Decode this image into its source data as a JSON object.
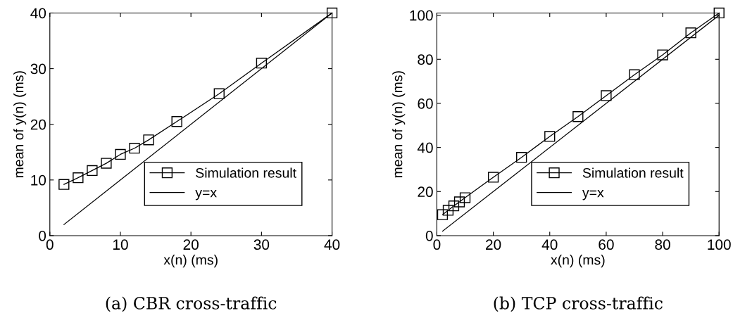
{
  "chart_data": [
    {
      "type": "line",
      "title": "(a) CBR cross-traffic",
      "xlabel": "x(n) (ms)",
      "ylabel": "mean of y(n) (ms)",
      "xlim": [
        0,
        40
      ],
      "ylim": [
        0,
        40
      ],
      "xticks": [
        0,
        10,
        20,
        30,
        40
      ],
      "yticks": [
        0,
        10,
        20,
        30,
        40
      ],
      "grid": false,
      "legend": "bottom right",
      "line_style": "solid",
      "series": [
        {
          "name": "Simulation result",
          "color": "#000000",
          "marker": "square",
          "x": [
            2,
            4,
            6,
            8,
            10,
            12,
            14,
            18,
            24,
            30,
            40
          ],
          "values": [
            9.2,
            10.4,
            11.7,
            13,
            14.6,
            15.7,
            17.2,
            20.5,
            25.5,
            31,
            40
          ]
        },
        {
          "name": "y=x",
          "color": "#000000",
          "marker": "none",
          "x": [
            2,
            40
          ],
          "values": [
            2,
            40
          ]
        }
      ]
    },
    {
      "type": "line",
      "title": "(b) TCP cross-traffic",
      "xlabel": "x(n) (ms)",
      "ylabel": "mean of y(n) (ms)",
      "xlim": [
        0,
        100
      ],
      "ylim": [
        0,
        101
      ],
      "xticks": [
        0,
        20,
        40,
        60,
        80,
        100
      ],
      "yticks": [
        0,
        20,
        40,
        60,
        80,
        100
      ],
      "grid": false,
      "legend": "bottom right",
      "line_style": "solid",
      "series": [
        {
          "name": "Simulation result",
          "color": "#000000",
          "marker": "square",
          "x": [
            2,
            4,
            6,
            8,
            10,
            20,
            30,
            40,
            50,
            60,
            70,
            80,
            90,
            100
          ],
          "values": [
            9.5,
            11.5,
            13.5,
            15.3,
            17.2,
            26.5,
            35.5,
            45,
            54,
            63.5,
            73,
            82,
            92,
            101
          ]
        },
        {
          "name": "y=x",
          "color": "#000000",
          "marker": "none",
          "x": [
            2,
            100
          ],
          "values": [
            2,
            100
          ]
        }
      ]
    }
  ]
}
